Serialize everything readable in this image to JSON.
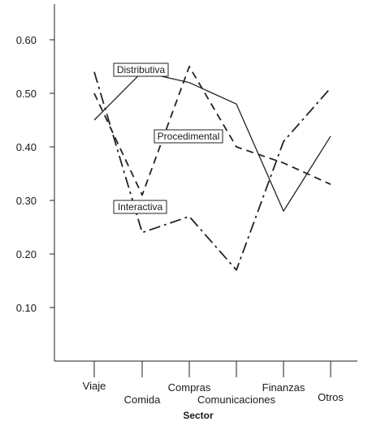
{
  "chart_data": {
    "type": "line",
    "xlabel": "Sector",
    "ylabel": "",
    "categories": [
      "Viaje",
      "Comida",
      "Compras",
      "Comunicaciones",
      "Finanzas",
      "Otros"
    ],
    "ylim": [
      0.0,
      0.65
    ],
    "yticks": [
      "0.10",
      "0.20",
      "0.30",
      "0.40",
      "0.50",
      "0.60"
    ],
    "grid": false,
    "series": [
      {
        "name": "Distributiva",
        "style": "solid",
        "color": "#222222",
        "values": [
          0.45,
          0.54,
          0.52,
          0.48,
          0.28,
          0.42
        ]
      },
      {
        "name": "Procedimental",
        "style": "dashed",
        "color": "#222222",
        "values": [
          0.5,
          0.31,
          0.55,
          0.4,
          0.37,
          0.33
        ]
      },
      {
        "name": "Interactiva",
        "style": "dashdot",
        "color": "#222222",
        "values": [
          0.54,
          0.24,
          0.27,
          0.17,
          0.41,
          0.51
        ]
      }
    ]
  }
}
